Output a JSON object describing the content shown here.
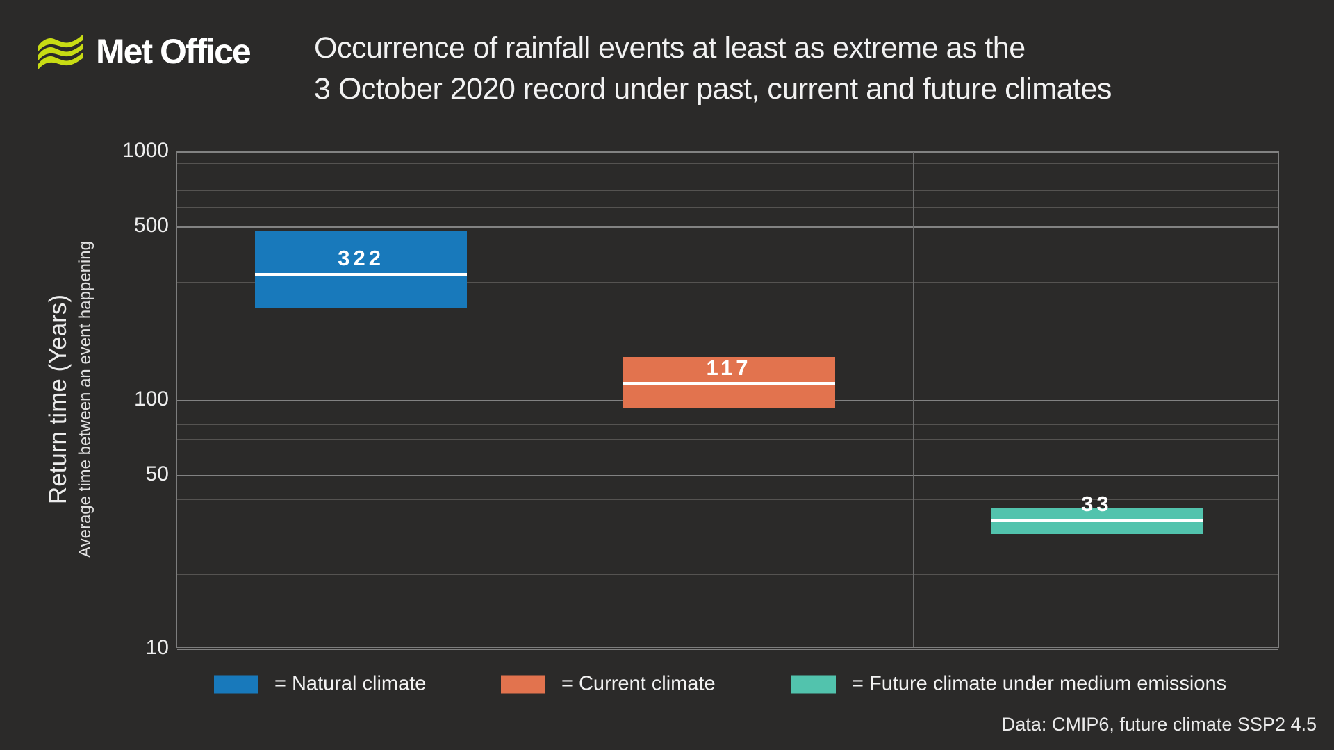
{
  "page": {
    "background": "#2b2a29"
  },
  "colors": {
    "background": "#2b2a29",
    "logo_green": "#c8dc14",
    "bar_blue": "#1879bb",
    "bar_orange": "#e2734e",
    "bar_teal": "#52c3ad",
    "gridline_minor": "#555351",
    "gridline_major": "#828282",
    "text": "#f2f2f2"
  },
  "header": {
    "logo_text": "Met Office",
    "title_line1": "Occurrence of rainfall events at least as extreme as the",
    "title_line2": "3 October 2020 record under past, current and future climates"
  },
  "y_axis": {
    "title": "Return time (Years)",
    "subtitle": "Average time between an event happening"
  },
  "legend": {
    "items": [
      {
        "label": "= Natural climate",
        "color": "#1879bb"
      },
      {
        "label": "= Current climate",
        "color": "#e2734e"
      },
      {
        "label": "= Future climate under medium emissions",
        "color": "#52c3ad"
      }
    ]
  },
  "footer": {
    "source": "Data: CMIP6, future climate SSP2 4.5"
  },
  "chart_data": {
    "type": "bar",
    "subtype": "floating-range-bars-with-median-line",
    "title": "Occurrence of rainfall events at least as extreme as the 3 October 2020 record under past, current and future climates",
    "ylabel": "Return time (Years)",
    "ylabel_sub": "Average time between an event happening",
    "yscale": "log",
    "ylim": [
      10,
      1000
    ],
    "yticks_labeled": [
      1000,
      500,
      100,
      50,
      10
    ],
    "gridline_values": [
      1000,
      900,
      800,
      700,
      600,
      500,
      400,
      300,
      200,
      100,
      90,
      80,
      70,
      60,
      50,
      40,
      30,
      20,
      10
    ],
    "grid": "on",
    "legend_position": "bottom",
    "categories": [
      "Natural climate",
      "Current climate",
      "Future climate under medium emissions"
    ],
    "bars": [
      {
        "category": "Natural climate",
        "slug": "natural-climate",
        "label": "322",
        "value": 322,
        "ci_low": 235,
        "ci_high": 480,
        "color": "#1879bb"
      },
      {
        "category": "Current climate",
        "slug": "current-climate",
        "label": "117",
        "value": 117,
        "ci_low": 94,
        "ci_high": 150,
        "color": "#e2734e"
      },
      {
        "category": "Future climate under medium emissions",
        "slug": "future-climate",
        "label": "33",
        "value": 33,
        "ci_low": 29,
        "ci_high": 37,
        "color": "#52c3ad"
      }
    ],
    "source": "Data: CMIP6, future climate SSP2 4.5"
  }
}
